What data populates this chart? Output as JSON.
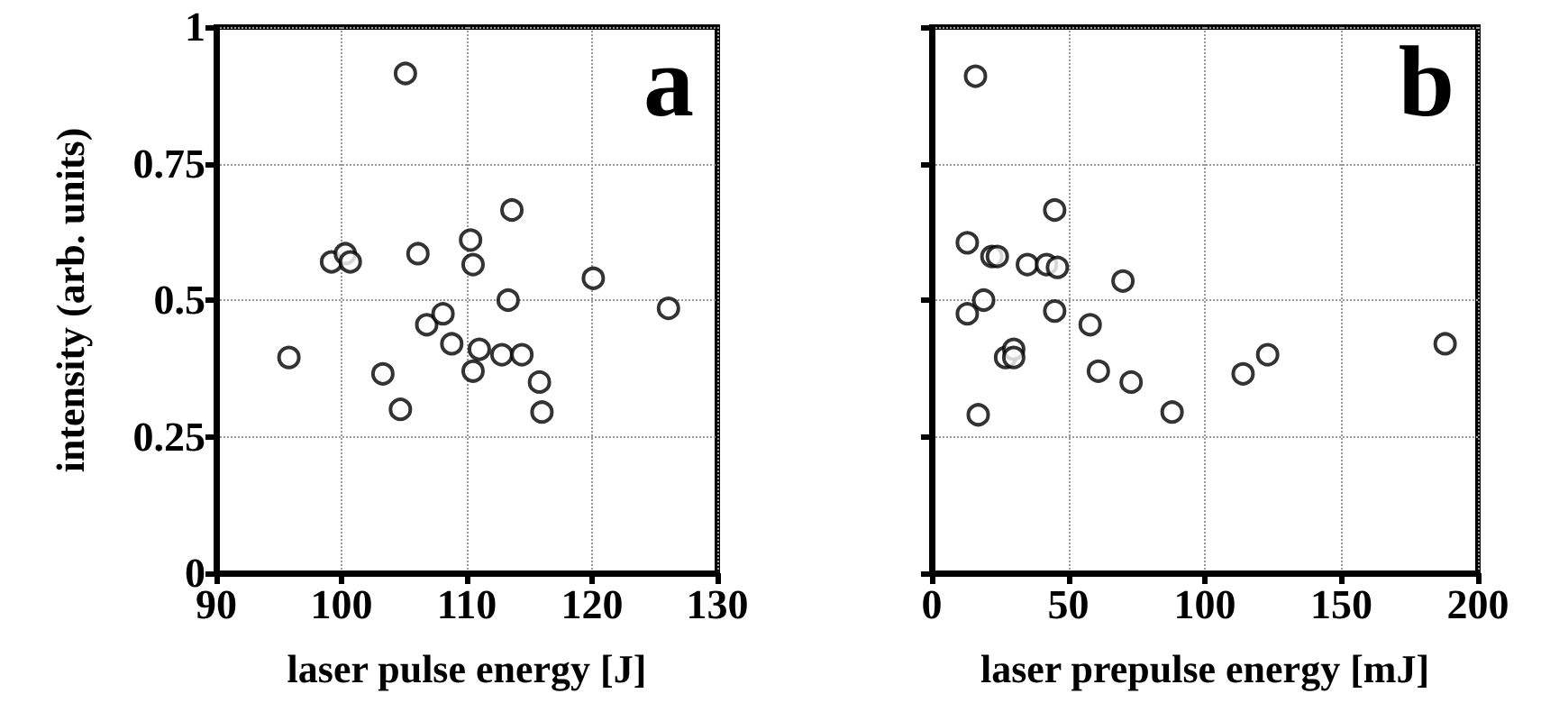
{
  "chart_data": [
    {
      "type": "scatter",
      "xlabel": "laser pulse energy [J]",
      "ylabel": "intensity (arb. units)",
      "annotations": [
        "a"
      ],
      "xlim": [
        90,
        130
      ],
      "xticks": [
        90,
        100,
        110,
        120,
        130
      ],
      "ylim": [
        0,
        1
      ],
      "yticks": [
        0,
        0.25,
        0.5,
        0.75,
        1
      ],
      "grid": true,
      "marker": "circle",
      "series": [
        {
          "color": "#000000",
          "x": [
            95.8,
            99.2,
            100.3,
            100.7,
            103.3,
            104.7,
            105.1,
            106.1,
            106.8,
            108.1,
            108.8,
            110.3,
            110.5,
            110.5,
            111.0,
            112.8,
            113.3,
            113.6,
            114.4,
            115.8,
            116.0,
            120.1,
            126.1
          ],
          "values": [
            0.395,
            0.57,
            0.585,
            0.57,
            0.365,
            0.3,
            0.915,
            0.585,
            0.455,
            0.475,
            0.42,
            0.61,
            0.565,
            0.37,
            0.41,
            0.4,
            0.5,
            0.665,
            0.4,
            0.35,
            0.295,
            0.54,
            0.485
          ]
        }
      ]
    },
    {
      "type": "scatter",
      "xlabel": "laser prepulse energy [mJ]",
      "annotations": [
        "b"
      ],
      "xlim": [
        0,
        200
      ],
      "xticks": [
        0,
        50,
        100,
        150,
        200
      ],
      "ylim": [
        0,
        1
      ],
      "yticks": [
        0,
        0.25,
        0.5,
        0.75,
        1
      ],
      "grid": true,
      "marker": "circle",
      "tick_labels": "x",
      "series": [
        {
          "color": "#000000",
          "x": [
            13,
            13,
            16,
            17,
            19,
            22,
            24,
            27,
            30,
            30,
            35,
            42,
            45,
            45,
            46,
            58,
            61,
            70,
            73,
            88,
            114,
            123,
            188
          ],
          "values": [
            0.605,
            0.475,
            0.91,
            0.29,
            0.5,
            0.58,
            0.58,
            0.395,
            0.41,
            0.395,
            0.565,
            0.565,
            0.665,
            0.48,
            0.56,
            0.455,
            0.37,
            0.535,
            0.35,
            0.295,
            0.365,
            0.4,
            0.42
          ]
        }
      ]
    }
  ]
}
